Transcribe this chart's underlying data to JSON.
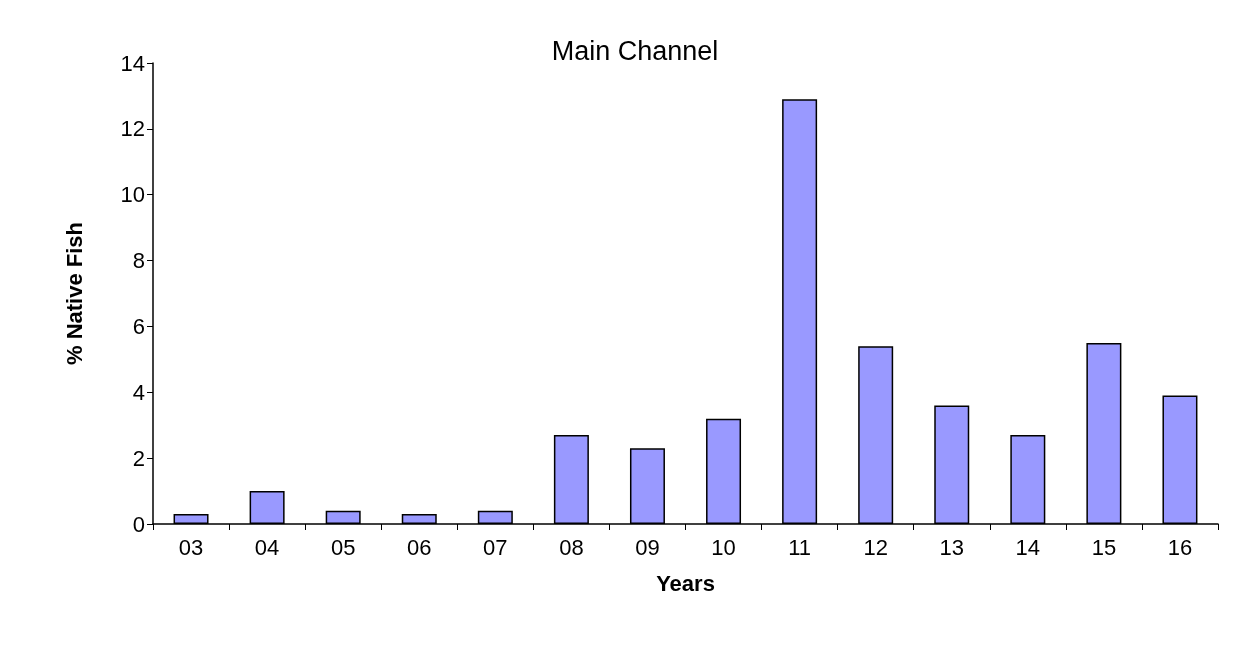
{
  "chart_data": {
    "type": "bar",
    "title": "Main Channel",
    "xlabel": "Years",
    "ylabel": "% Native Fish",
    "categories": [
      "03",
      "04",
      "05",
      "06",
      "07",
      "08",
      "09",
      "10",
      "11",
      "12",
      "13",
      "14",
      "15",
      "16"
    ],
    "values": [
      0.3,
      1.0,
      0.4,
      0.3,
      0.4,
      2.7,
      2.3,
      3.2,
      12.9,
      5.4,
      3.6,
      2.7,
      5.5,
      3.9
    ],
    "color": "#9999ff",
    "ylim": [
      0,
      14
    ],
    "yticks": [
      0,
      2,
      4,
      6,
      8,
      10,
      12,
      14
    ],
    "grid": false
  }
}
